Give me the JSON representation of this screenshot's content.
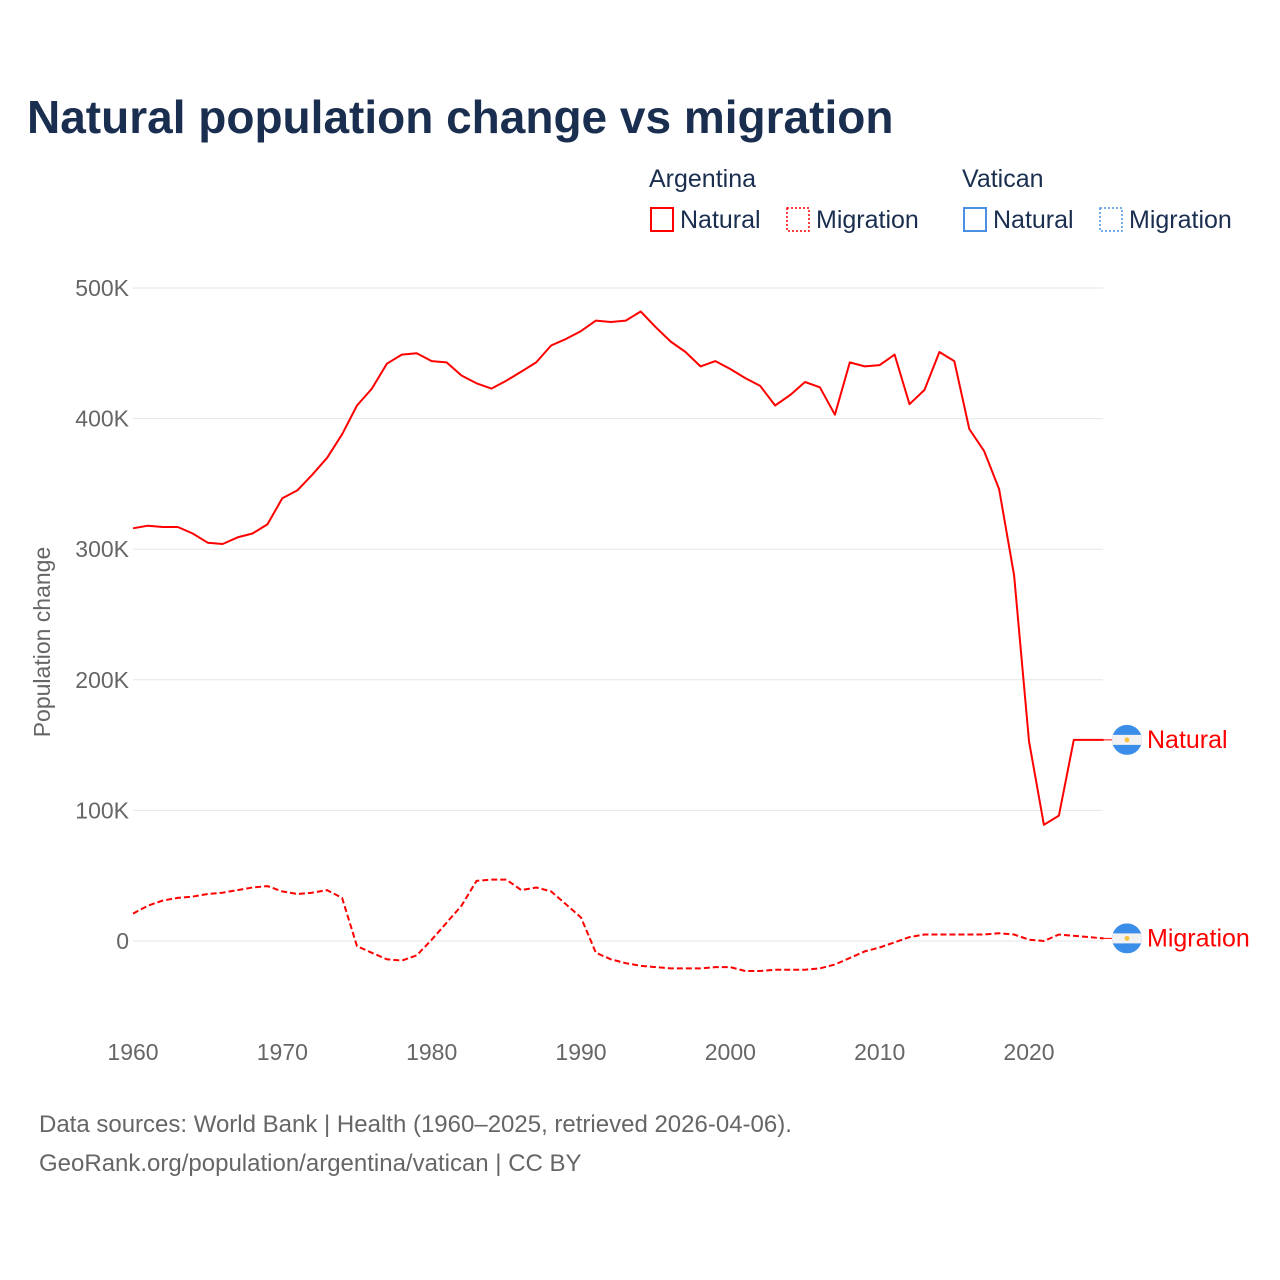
{
  "chart_data": {
    "type": "line",
    "title": "Natural population change vs migration",
    "xlabel": "",
    "ylabel": "Population change",
    "xlim": [
      1960,
      2025
    ],
    "ylim": [
      -60000,
      500000
    ],
    "grid": true,
    "x_ticks": [
      "1960",
      "1970",
      "1980",
      "1990",
      "2000",
      "2010",
      "2020"
    ],
    "y_ticks": [
      {
        "value": 0,
        "label": "0"
      },
      {
        "value": 100000,
        "label": "100K"
      },
      {
        "value": 200000,
        "label": "200K"
      },
      {
        "value": 300000,
        "label": "300K"
      },
      {
        "value": 400000,
        "label": "400K"
      },
      {
        "value": 500000,
        "label": "500K"
      }
    ],
    "legend": {
      "placement": "top-right",
      "groups": [
        {
          "name": "Argentina",
          "color": "#ff0000",
          "entries": [
            "Natural",
            "Migration"
          ]
        },
        {
          "name": "Vatican",
          "color": "#4a90e2",
          "entries": [
            "Natural",
            "Migration"
          ]
        }
      ]
    },
    "x": [
      1960,
      1961,
      1962,
      1963,
      1964,
      1965,
      1966,
      1967,
      1968,
      1969,
      1970,
      1971,
      1972,
      1973,
      1974,
      1975,
      1976,
      1977,
      1978,
      1979,
      1980,
      1981,
      1982,
      1983,
      1984,
      1985,
      1986,
      1987,
      1988,
      1989,
      1990,
      1991,
      1992,
      1993,
      1994,
      1995,
      1996,
      1997,
      1998,
      1999,
      2000,
      2001,
      2002,
      2003,
      2004,
      2005,
      2006,
      2007,
      2008,
      2009,
      2010,
      2011,
      2012,
      2013,
      2014,
      2015,
      2016,
      2017,
      2018,
      2019,
      2020,
      2021,
      2022,
      2023,
      2024,
      2025
    ],
    "series": [
      {
        "name": "Natural",
        "country": "Argentina",
        "color": "#ff0000",
        "style": "solid",
        "end_label": "Natural",
        "values": [
          316000,
          318000,
          317000,
          317000,
          312000,
          305000,
          304000,
          309000,
          312000,
          319000,
          339000,
          345000,
          357000,
          370000,
          388000,
          410000,
          423000,
          442000,
          449000,
          450000,
          444000,
          443000,
          433000,
          427000,
          423000,
          429000,
          436000,
          443000,
          456000,
          461000,
          467000,
          475000,
          474000,
          475000,
          482000,
          470000,
          459000,
          451000,
          440000,
          444000,
          438000,
          431000,
          425000,
          410000,
          418000,
          428000,
          424000,
          403000,
          443000,
          440000,
          441000,
          449000,
          411000,
          422000,
          451000,
          444000,
          392000,
          375000,
          346000,
          280000,
          153000,
          89000,
          96000,
          154000,
          154000,
          154000
        ]
      },
      {
        "name": "Migration",
        "country": "Argentina",
        "color": "#ff0000",
        "style": "dashed",
        "end_label": "Migration",
        "values": [
          21000,
          27000,
          31000,
          33000,
          34000,
          36000,
          37000,
          39000,
          41000,
          42000,
          38000,
          36000,
          37000,
          39000,
          33000,
          -4000,
          -9000,
          -14000,
          -15000,
          -11000,
          1000,
          14000,
          27000,
          46000,
          47000,
          47000,
          39000,
          41000,
          38000,
          28000,
          18000,
          -9000,
          -14000,
          -17000,
          -19000,
          -20000,
          -21000,
          -21000,
          -21000,
          -20000,
          -20000,
          -23000,
          -23000,
          -22000,
          -22000,
          -22000,
          -21000,
          -18000,
          -13000,
          -8000,
          -5000,
          -1000,
          3000,
          5000,
          5000,
          5000,
          5000,
          5000,
          6000,
          5000,
          1000,
          0,
          5000,
          4000,
          3000,
          2000
        ]
      }
    ]
  },
  "source": {
    "line1": "Data sources: World Bank | Health (1960–2025, retrieved 2026-04-06).",
    "line2": "GeoRank.org/population/argentina/vatican | CC BY"
  }
}
